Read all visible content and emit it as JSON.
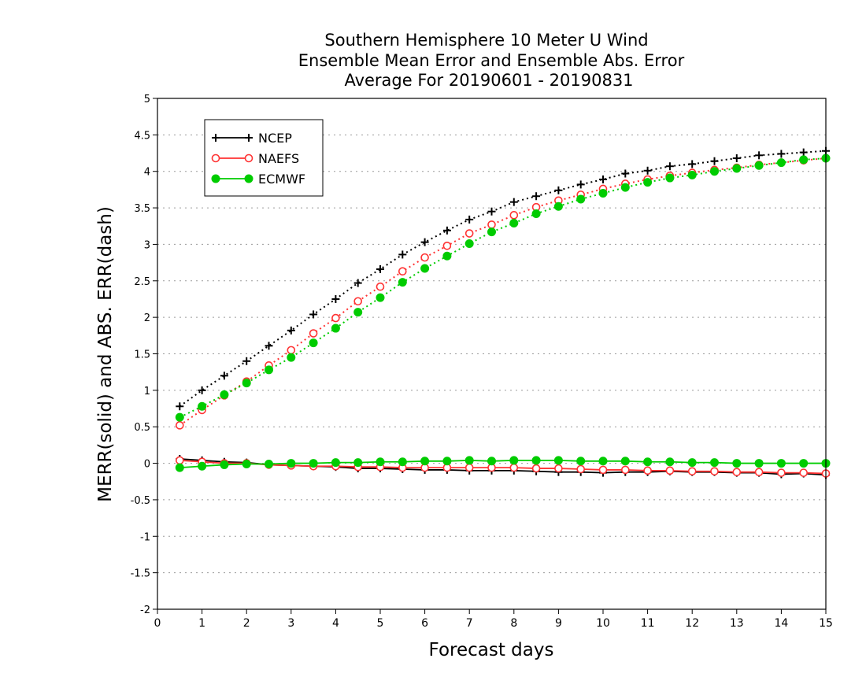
{
  "chart_data": {
    "type": "line",
    "title_lines": [
      "Southern Hemisphere 10 Meter U Wind",
      "Ensemble Mean Error and Ensemble Abs. Error",
      "Average For 20190601 - 20190831"
    ],
    "xlabel": "Forecast days",
    "ylabel": "MERR(solid) and ABS. ERR(dash)",
    "xlim": [
      0,
      15
    ],
    "ylim": [
      -2,
      5
    ],
    "x_ticks": [
      "0",
      "1",
      "2",
      "3",
      "4",
      "5",
      "6",
      "7",
      "8",
      "9",
      "10",
      "11",
      "12",
      "13",
      "14",
      "15"
    ],
    "y_ticks": [
      "-2",
      "-1.5",
      "-1",
      "-0.5",
      "0",
      "0.5",
      "1",
      "1.5",
      "2",
      "2.5",
      "3",
      "3.5",
      "4",
      "4.5",
      "5"
    ],
    "grid": "horizontal dotted",
    "legend_position": "top-left",
    "x": [
      0.5,
      1,
      1.5,
      2,
      2.5,
      3,
      3.5,
      4,
      4.5,
      5,
      5.5,
      6,
      6.5,
      7,
      7.5,
      8,
      8.5,
      9,
      9.5,
      10,
      10.5,
      11,
      11.5,
      12,
      12.5,
      13,
      13.5,
      14,
      14.5,
      15
    ],
    "series": [
      {
        "name": "NCEP",
        "color": "#000000",
        "marker": "plus",
        "abs_error": [
          0.78,
          1.0,
          1.2,
          1.4,
          1.61,
          1.82,
          2.04,
          2.25,
          2.47,
          2.66,
          2.86,
          3.03,
          3.19,
          3.34,
          3.45,
          3.58,
          3.66,
          3.74,
          3.82,
          3.89,
          3.97,
          4.01,
          4.07,
          4.1,
          4.14,
          4.18,
          4.22,
          4.24,
          4.26,
          4.28
        ],
        "mean_error": [
          0.06,
          0.04,
          0.02,
          0.01,
          -0.02,
          -0.03,
          -0.04,
          -0.05,
          -0.07,
          -0.07,
          -0.08,
          -0.09,
          -0.09,
          -0.1,
          -0.1,
          -0.1,
          -0.11,
          -0.12,
          -0.12,
          -0.13,
          -0.12,
          -0.12,
          -0.11,
          -0.12,
          -0.12,
          -0.13,
          -0.13,
          -0.15,
          -0.14,
          -0.16
        ]
      },
      {
        "name": "NAEFS",
        "color": "#ff3333",
        "marker": "open-circle",
        "abs_error": [
          0.52,
          0.73,
          0.93,
          1.12,
          1.34,
          1.55,
          1.78,
          1.99,
          2.22,
          2.42,
          2.63,
          2.82,
          2.98,
          3.15,
          3.27,
          3.4,
          3.51,
          3.6,
          3.68,
          3.76,
          3.83,
          3.89,
          3.94,
          3.98,
          4.02,
          4.05,
          4.09,
          4.12,
          4.15,
          4.18
        ],
        "mean_error": [
          0.04,
          0.02,
          0.0,
          0.0,
          -0.02,
          -0.03,
          -0.04,
          -0.04,
          -0.05,
          -0.05,
          -0.06,
          -0.06,
          -0.06,
          -0.06,
          -0.06,
          -0.06,
          -0.07,
          -0.07,
          -0.08,
          -0.09,
          -0.09,
          -0.1,
          -0.1,
          -0.11,
          -0.11,
          -0.12,
          -0.12,
          -0.13,
          -0.13,
          -0.14
        ]
      },
      {
        "name": "ECMWF",
        "color": "#00cc00",
        "marker": "filled-circle",
        "abs_error": [
          0.63,
          0.78,
          0.94,
          1.1,
          1.28,
          1.45,
          1.65,
          1.85,
          2.07,
          2.27,
          2.48,
          2.67,
          2.84,
          3.01,
          3.17,
          3.29,
          3.42,
          3.52,
          3.62,
          3.7,
          3.78,
          3.85,
          3.91,
          3.95,
          4.0,
          4.04,
          4.08,
          4.12,
          4.16,
          4.18
        ],
        "mean_error": [
          -0.06,
          -0.04,
          -0.02,
          -0.01,
          -0.01,
          0.0,
          0.0,
          0.01,
          0.01,
          0.02,
          0.02,
          0.03,
          0.03,
          0.04,
          0.03,
          0.04,
          0.04,
          0.04,
          0.03,
          0.03,
          0.03,
          0.02,
          0.02,
          0.01,
          0.01,
          0.0,
          0.0,
          0.0,
          0.0,
          0.0
        ]
      }
    ]
  }
}
